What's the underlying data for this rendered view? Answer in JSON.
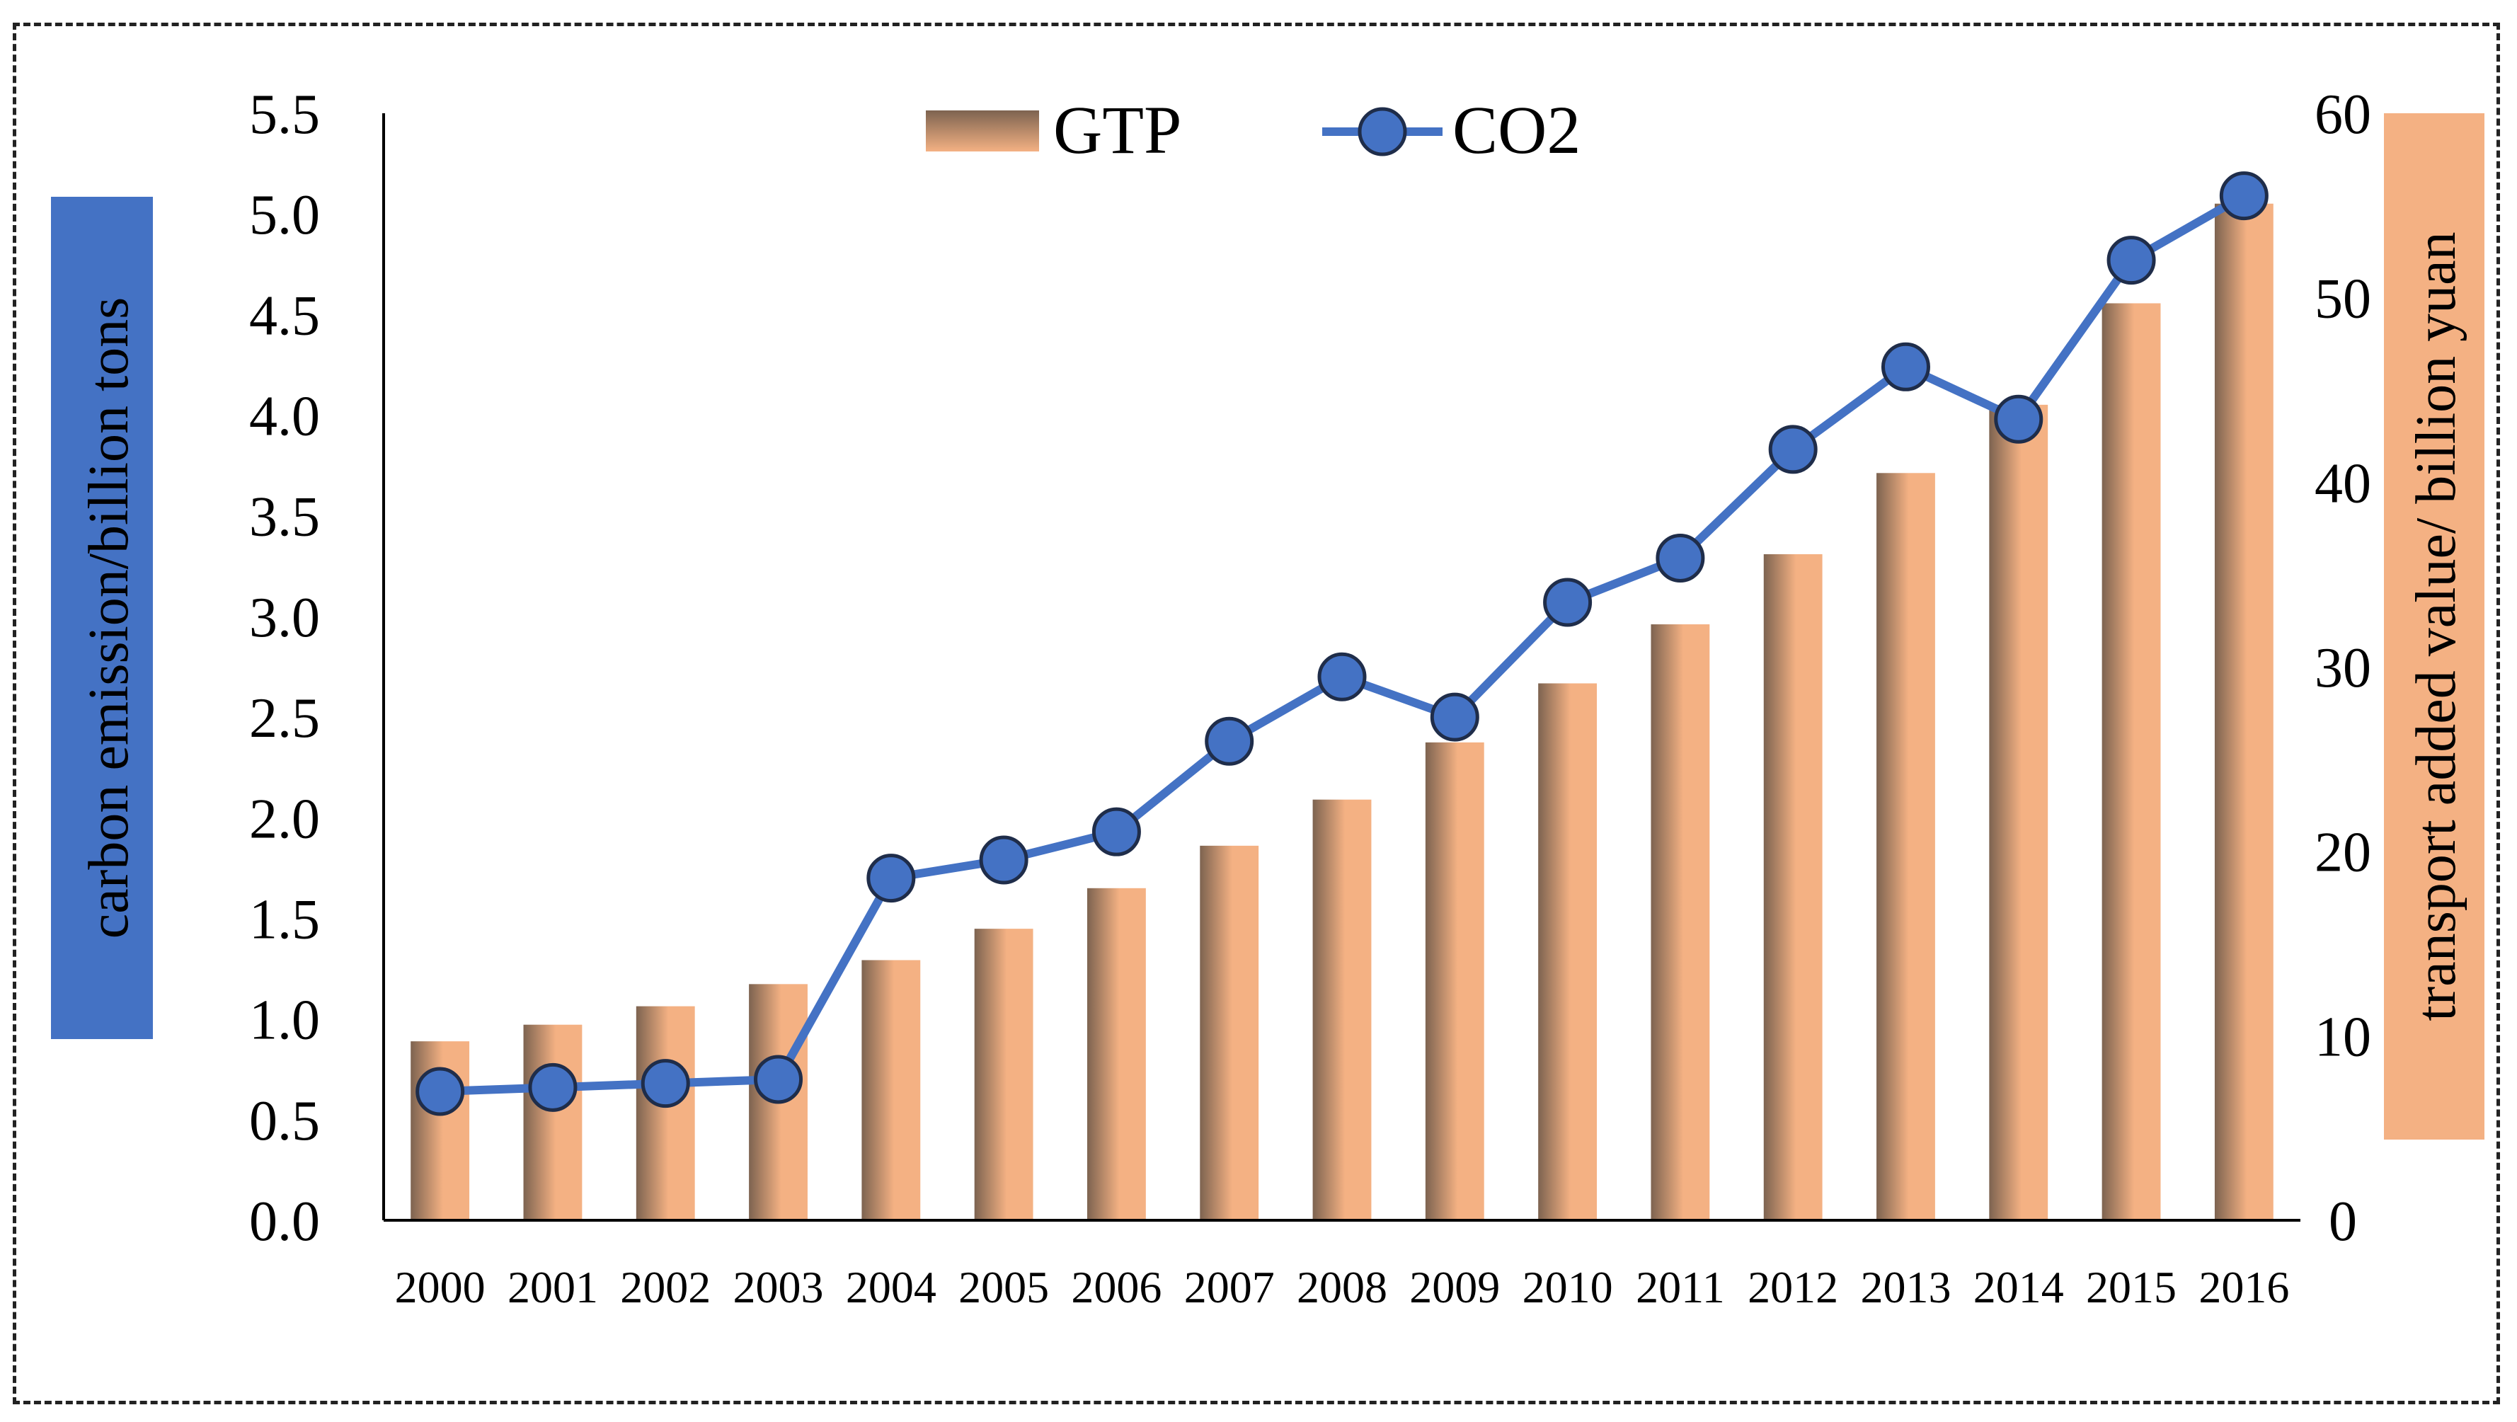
{
  "chart_data": {
    "type": "bar+line",
    "categories": [
      "2000",
      "2001",
      "2002",
      "2003",
      "2004",
      "2005",
      "2006",
      "2007",
      "2008",
      "2009",
      "2010",
      "2011",
      "2012",
      "2013",
      "2014",
      "2015",
      "2016"
    ],
    "series": [
      {
        "name": "GTP",
        "type": "bar",
        "axis": "right",
        "values": [
          9.7,
          10.6,
          11.6,
          12.8,
          14.1,
          15.8,
          18.0,
          20.3,
          22.8,
          25.9,
          29.1,
          32.3,
          36.1,
          40.5,
          44.2,
          49.7,
          55.1
        ]
      },
      {
        "name": "CO2",
        "type": "line",
        "axis": "left",
        "values": [
          0.64,
          0.66,
          0.68,
          0.7,
          1.7,
          1.79,
          1.93,
          2.38,
          2.7,
          2.5,
          3.07,
          3.29,
          3.83,
          4.24,
          3.98,
          4.77,
          5.09
        ]
      }
    ],
    "y_left": {
      "label": "carbon emission/billion tons",
      "range": [
        0,
        5.5
      ],
      "ticks": [
        "0.0",
        "0.5",
        "1.0",
        "1.5",
        "2.0",
        "2.5",
        "3.0",
        "3.5",
        "4.0",
        "4.5",
        "5.0",
        "5.5"
      ]
    },
    "y_right": {
      "label": "transport added value/ billion yuan",
      "range": [
        0,
        60
      ],
      "ticks": [
        "0",
        "10",
        "20",
        "30",
        "40",
        "50",
        "60"
      ]
    },
    "legend": {
      "placement": "top-center",
      "items": [
        "GTP",
        "CO2"
      ]
    },
    "grid": false
  },
  "colors": {
    "line": "#4472C4",
    "marker_edge": "#1F2D4A",
    "bar_light": "#F4B183",
    "bar_dark": "#7D6350",
    "left_label_bg": "#4472C4",
    "right_label_bg": "#F4B183"
  }
}
